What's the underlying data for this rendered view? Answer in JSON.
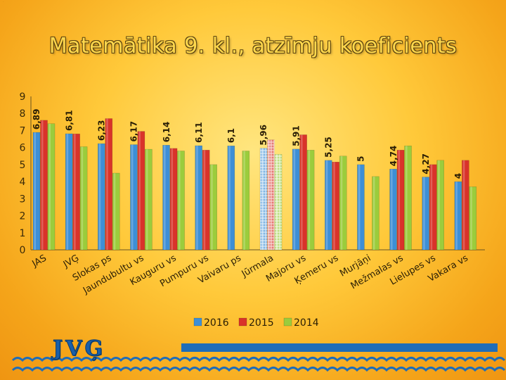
{
  "title": "Matemātika 9. kl., atzīmju koeficients",
  "logo_text": "JVĢ",
  "chart_data": {
    "type": "bar",
    "title": "Matemātika 9. kl., atzīmju koeficients",
    "categories": [
      "JAS",
      "JVĢ",
      "Slokas ps",
      "Jaundubultu vs",
      "Kauguru vs",
      "Pumpuru vs",
      "Vaivaru ps",
      "Jūrmala",
      "Majoru vs",
      "Ķemeru vs",
      "Murjāņi",
      "Mežmalas vs",
      "Lielupes vs",
      "Vakara vs"
    ],
    "series": [
      {
        "name": "2016",
        "color": "#3d8fd6",
        "values": [
          6.89,
          6.81,
          6.23,
          6.17,
          6.14,
          6.11,
          6.1,
          5.96,
          5.91,
          5.25,
          5,
          4.74,
          4.27,
          4
        ]
      },
      {
        "name": "2015",
        "color": "#d9332a",
        "values": [
          7.6,
          6.8,
          7.7,
          6.95,
          5.95,
          5.85,
          null,
          6.45,
          6.75,
          5.15,
          null,
          5.85,
          5.0,
          5.25
        ]
      },
      {
        "name": "2014",
        "color": "#9bcc3c",
        "values": [
          7.4,
          6.05,
          4.5,
          5.9,
          5.8,
          5.0,
          5.8,
          5.6,
          5.85,
          5.5,
          4.3,
          6.1,
          5.25,
          3.7
        ]
      }
    ],
    "data_labels": [
      "6,89",
      "6,81",
      "6,23",
      "6,17",
      "6,14",
      "6,11",
      "6,1",
      "5,96",
      "5,91",
      "5,25",
      "5",
      "4,74",
      "4,27",
      "4"
    ],
    "y_ticks": [
      "0",
      "1",
      "2",
      "3",
      "4",
      "5",
      "6",
      "7",
      "8",
      "9"
    ],
    "ylim": [
      0,
      9
    ],
    "grid": false,
    "legend_position": "bottom",
    "highlight_category": "Jūrmala"
  }
}
